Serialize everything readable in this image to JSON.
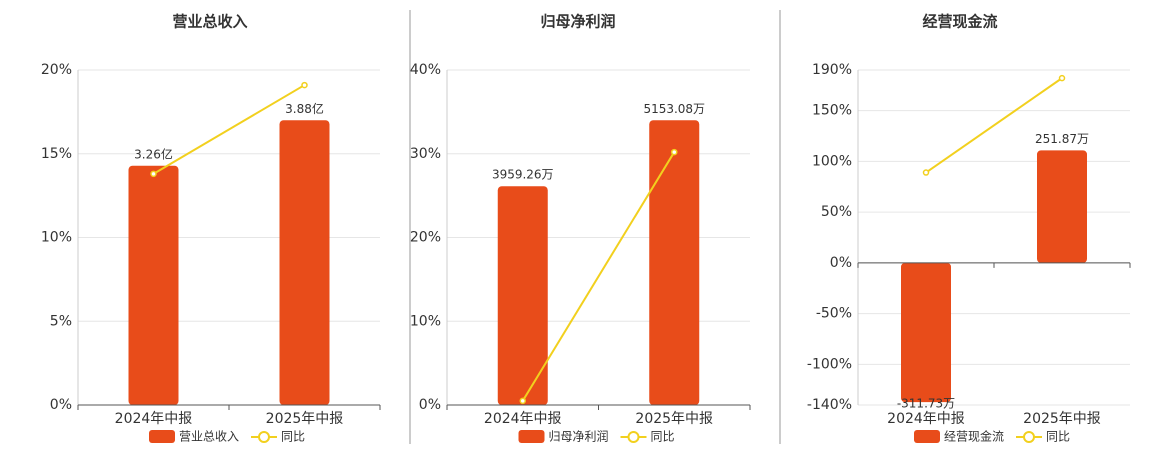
{
  "chart_data": [
    {
      "type": "bar",
      "title": "营业总收入",
      "categories": [
        "2024年中报",
        "2025年中报"
      ],
      "series": [
        {
          "name": "营业总收入",
          "color": "#e84c1a",
          "values": [
            3.26,
            3.88
          ],
          "value_labels": [
            "3.26亿",
            "3.88亿"
          ]
        },
        {
          "name": "同比",
          "type": "line",
          "color": "#f2d01e",
          "values": [
            13.8,
            19.1
          ]
        }
      ],
      "ylim": [
        0,
        20
      ],
      "yticks": [
        {
          "value": 0,
          "label": "0%"
        },
        {
          "value": 5,
          "label": "5%"
        },
        {
          "value": 10,
          "label": "10%"
        },
        {
          "value": 15,
          "label": "15%"
        },
        {
          "value": 20,
          "label": "20%"
        }
      ],
      "grid": true
    },
    {
      "type": "bar",
      "title": "归母净利润",
      "categories": [
        "2024年中报",
        "2025年中报"
      ],
      "series": [
        {
          "name": "归母净利润",
          "color": "#e84c1a",
          "values": [
            3959.26,
            5153.08
          ],
          "value_labels": [
            "3959.26万",
            "5153.08万"
          ]
        },
        {
          "name": "同比",
          "type": "line",
          "color": "#f2d01e",
          "values": [
            0.5,
            30.2
          ]
        }
      ],
      "ylim": [
        0,
        40
      ],
      "yticks": [
        {
          "value": 0,
          "label": "0%"
        },
        {
          "value": 10,
          "label": "10%"
        },
        {
          "value": 20,
          "label": "20%"
        },
        {
          "value": 30,
          "label": "30%"
        },
        {
          "value": 40,
          "label": "40%"
        }
      ],
      "grid": true
    },
    {
      "type": "bar",
      "title": "经营现金流",
      "categories": [
        "2024年中报",
        "2025年中报"
      ],
      "series": [
        {
          "name": "经营现金流",
          "color": "#e84c1a",
          "values": [
            -311.73,
            251.87
          ],
          "value_labels": [
            "-311.73万",
            "251.87万"
          ]
        },
        {
          "name": "同比",
          "type": "line",
          "color": "#f2d01e",
          "values": [
            89,
            182
          ]
        }
      ],
      "ylim": [
        -140,
        190
      ],
      "yticks": [
        {
          "value": -140,
          "label": "-140%"
        },
        {
          "value": -100,
          "label": "-100%"
        },
        {
          "value": -50,
          "label": "-50%"
        },
        {
          "value": 0,
          "label": "0%"
        },
        {
          "value": 50,
          "label": "50%"
        },
        {
          "value": 100,
          "label": "100%"
        },
        {
          "value": 150,
          "label": "150%"
        },
        {
          "value": 190,
          "label": "190%"
        }
      ],
      "grid": true
    }
  ]
}
